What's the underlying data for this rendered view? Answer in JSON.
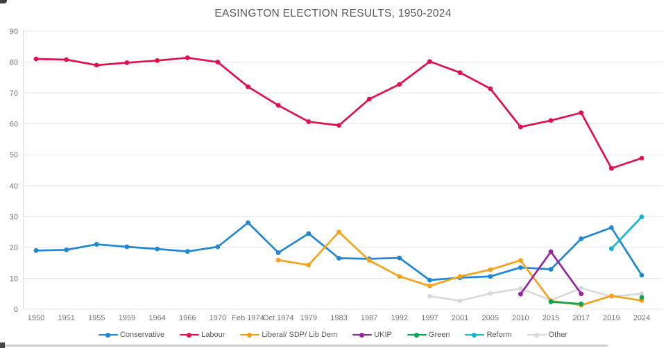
{
  "chart_data": {
    "type": "line",
    "title": "EASINGTON ELECTION RESULTS, 1950-2024",
    "xlabel": "",
    "ylabel": "",
    "ylim": [
      0,
      90
    ],
    "yticks": [
      0,
      10,
      20,
      30,
      40,
      50,
      60,
      70,
      80,
      90
    ],
    "grid": true,
    "legend_position": "bottom",
    "categories": [
      "1950",
      "1951",
      "1955",
      "1959",
      "1964",
      "1966",
      "1970",
      "Feb 1974",
      "Oct 1974",
      "1979",
      "1983",
      "1987",
      "1992",
      "1997",
      "2001",
      "2005",
      "2010",
      "2015",
      "2017",
      "2019",
      "2024"
    ],
    "series": [
      {
        "name": "Conservative",
        "color": "#1e87d3",
        "values": [
          19,
          19.2,
          21,
          20.2,
          19.5,
          18.7,
          20.2,
          28,
          18.3,
          24.5,
          16.5,
          16.3,
          16.6,
          9.4,
          10.2,
          10.6,
          13.5,
          12.9,
          22.8,
          26.4,
          11
        ]
      },
      {
        "name": "Labour",
        "color": "#e0104d",
        "values": [
          81,
          80.8,
          79,
          79.8,
          80.5,
          81.4,
          80,
          72,
          66,
          60.7,
          59.5,
          68,
          72.8,
          80.2,
          76.6,
          71.4,
          59,
          61.1,
          63.6,
          45.6,
          48.9
        ]
      },
      {
        "name": "Liberal/ SDP/ Lib Dem",
        "color": "#f5a21c",
        "values": [
          null,
          null,
          null,
          null,
          null,
          null,
          null,
          null,
          15.9,
          14.3,
          25,
          15.8,
          10.6,
          7.5,
          10.6,
          12.8,
          15.8,
          2.7,
          1.3,
          4.3,
          2.8
        ]
      },
      {
        "name": "UKIP",
        "color": "#94279e",
        "values": [
          null,
          null,
          null,
          null,
          null,
          null,
          null,
          null,
          null,
          null,
          null,
          null,
          null,
          null,
          null,
          null,
          4.9,
          18.6,
          5,
          null,
          null
        ]
      },
      {
        "name": "Green",
        "color": "#0aa54f",
        "values": [
          null,
          null,
          null,
          null,
          null,
          null,
          null,
          null,
          null,
          null,
          null,
          null,
          null,
          null,
          null,
          null,
          null,
          2.4,
          1.7,
          null,
          3.8
        ]
      },
      {
        "name": "Reform",
        "color": "#17b6d3",
        "values": [
          null,
          null,
          null,
          null,
          null,
          null,
          null,
          null,
          null,
          null,
          null,
          null,
          null,
          null,
          null,
          null,
          null,
          null,
          null,
          19.6,
          29.9
        ]
      },
      {
        "name": "Other",
        "color": "#d9d9d9",
        "values": [
          null,
          null,
          null,
          null,
          null,
          null,
          null,
          null,
          null,
          null,
          null,
          null,
          null,
          4.2,
          2.7,
          5.1,
          6.7,
          2.9,
          6.8,
          4.1,
          5
        ]
      }
    ],
    "draw_order": [
      6,
      0,
      1,
      2,
      3,
      4,
      5
    ]
  }
}
